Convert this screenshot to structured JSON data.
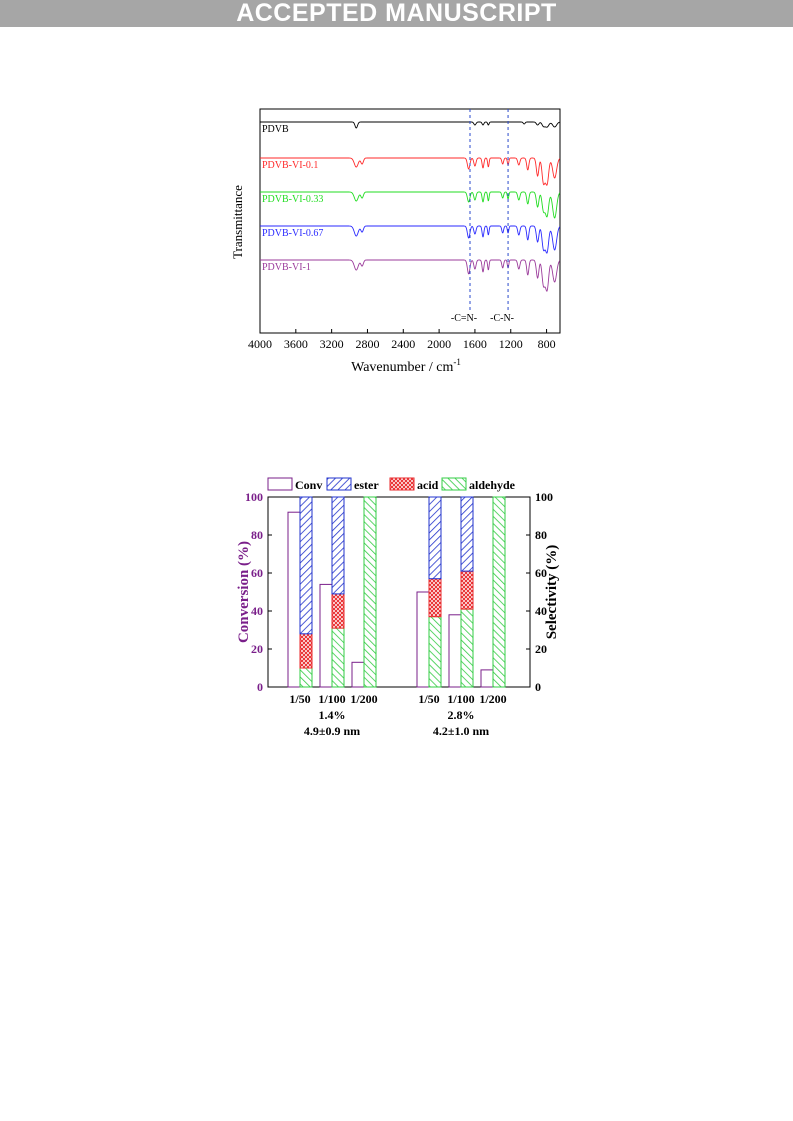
{
  "header": {
    "banner": "ACCEPTED MANUSCRIPT"
  },
  "chart_data": [
    {
      "type": "line",
      "xlabel": "Wavenumber / cm",
      "xlabel_sup": "-1",
      "ylabel": "Transmittance",
      "xlim": [
        4000,
        650
      ],
      "x_reversed": true,
      "xticks": [
        "4000",
        "3600",
        "3200",
        "2800",
        "2400",
        "2000",
        "1600",
        "1200",
        "800"
      ],
      "x_tick_values": [
        4000,
        3600,
        3200,
        2800,
        2400,
        2000,
        1600,
        1200,
        800
      ],
      "grid": false,
      "series": [
        {
          "name": "PDVB",
          "color": "#000000"
        },
        {
          "name": "PDVB-VI-0.1",
          "color": "#ff2a2a"
        },
        {
          "name": "PDVB-VI-0.33",
          "color": "#22dd22"
        },
        {
          "name": "PDVB-VI-0.67",
          "color": "#2a2aff"
        },
        {
          "name": "PDVB-VI-1",
          "color": "#9b3b9b"
        }
      ],
      "reference_lines": [
        {
          "x": 1655,
          "label": "-C=N-"
        },
        {
          "x": 1230,
          "label": "-C-N-"
        }
      ]
    },
    {
      "type": "bar",
      "legend": [
        "Conv",
        "ester",
        "acid",
        "aldehyde"
      ],
      "legend_position": "top",
      "ylabel_left": "Conversion (%)",
      "ylabel_right": "Selectivity (%)",
      "ylim": [
        0,
        100
      ],
      "yticks": [
        "0",
        "20",
        "40",
        "60",
        "80",
        "100"
      ],
      "colors": {
        "conv": "#7a1f8a",
        "ester": "#2233cc",
        "acid": "#e8282b",
        "aldehyde": "#33cc44"
      },
      "groups": [
        {
          "label_loading": "1.4%",
          "label_size": "4.9±0.9 nm",
          "bars": [
            {
              "ratio": "1/50",
              "conversion": 92,
              "aldehyde": 10,
              "acid": 18,
              "ester": 72
            },
            {
              "ratio": "1/100",
              "conversion": 54,
              "aldehyde": 31,
              "acid": 18,
              "ester": 51
            },
            {
              "ratio": "1/200",
              "conversion": 13,
              "aldehyde": 100,
              "acid": 0,
              "ester": 0
            }
          ]
        },
        {
          "label_loading": "2.8%",
          "label_size": "4.2±1.0 nm",
          "bars": [
            {
              "ratio": "1/50",
              "conversion": 50,
              "aldehyde": 37,
              "acid": 20,
              "ester": 43
            },
            {
              "ratio": "1/100",
              "conversion": 38,
              "aldehyde": 41,
              "acid": 20,
              "ester": 39
            },
            {
              "ratio": "1/200",
              "conversion": 9,
              "aldehyde": 100,
              "acid": 0,
              "ester": 0
            }
          ]
        }
      ]
    }
  ]
}
